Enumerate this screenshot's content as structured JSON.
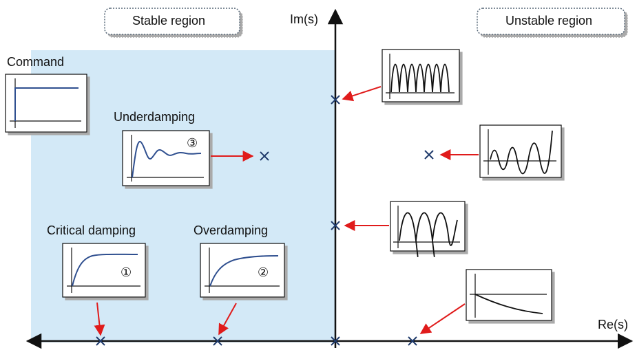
{
  "regions": {
    "stable_label": "Stable region",
    "unstable_label": "Unstable region"
  },
  "axes": {
    "im_label": "Im(s)",
    "re_label": "Re(s)"
  },
  "responses": {
    "command": "Command",
    "underdamping": "Underdamping",
    "critical": "Critical damping",
    "overdamping": "Overdamping",
    "marker_critical": "①",
    "marker_over": "②",
    "marker_under": "③"
  },
  "colors": {
    "stable_fill": "#d3e9f7",
    "axis": "#111111",
    "curve_blue": "#2f4f8f",
    "pole_marker": "#1f3a6b",
    "arrow_red": "#e01b1b"
  },
  "icons": {
    "pole": "cross-mark-icon",
    "arrow": "red-arrow-icon"
  }
}
